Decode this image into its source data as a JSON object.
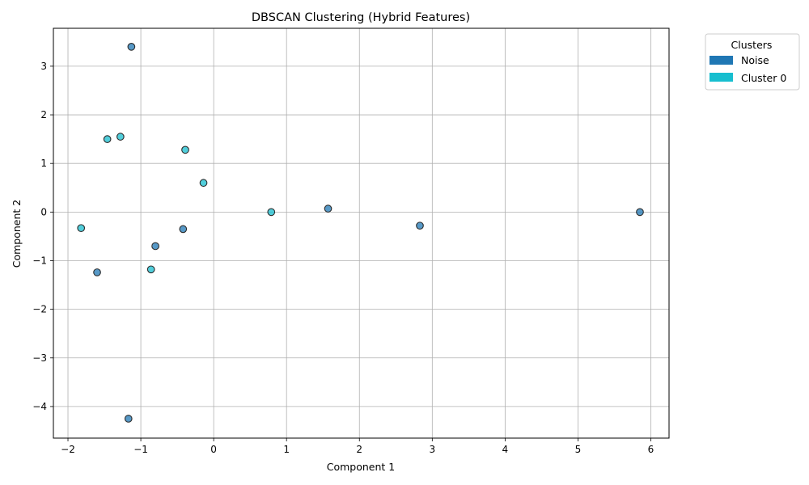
{
  "chart_data": {
    "type": "scatter",
    "title": "DBSCAN Clustering (Hybrid Features)",
    "xlabel": "Component 1",
    "ylabel": "Component 2",
    "xlim": [
      -2.2,
      6.25
    ],
    "ylim": [
      -4.65,
      3.78
    ],
    "xticks": [
      -2,
      -1,
      0,
      1,
      2,
      3,
      4,
      5,
      6
    ],
    "yticks": [
      -4,
      -3,
      -2,
      -1,
      0,
      1,
      2,
      3
    ],
    "grid": true,
    "legend": {
      "title": "Clusters",
      "placement": "outside right-top",
      "entries": [
        {
          "label": "Noise",
          "color": "#1f77b4"
        },
        {
          "label": "Cluster 0",
          "color": "#17becf"
        }
      ]
    },
    "series": [
      {
        "name": "Noise",
        "color": "#1f77b4",
        "points": [
          {
            "x": -1.13,
            "y": 3.4
          },
          {
            "x": -1.6,
            "y": -1.24
          },
          {
            "x": -0.8,
            "y": -0.7
          },
          {
            "x": -0.42,
            "y": -0.35
          },
          {
            "x": 1.57,
            "y": 0.07
          },
          {
            "x": 2.83,
            "y": -0.28
          },
          {
            "x": 5.85,
            "y": 0.0
          },
          {
            "x": -1.17,
            "y": -4.25
          }
        ]
      },
      {
        "name": "Cluster 0",
        "color": "#17becf",
        "points": [
          {
            "x": -1.46,
            "y": 1.5
          },
          {
            "x": -1.28,
            "y": 1.55
          },
          {
            "x": -0.39,
            "y": 1.28
          },
          {
            "x": -0.14,
            "y": 0.6
          },
          {
            "x": -1.82,
            "y": -0.33
          },
          {
            "x": -0.86,
            "y": -1.18
          },
          {
            "x": 0.79,
            "y": 0.0
          }
        ]
      }
    ]
  }
}
